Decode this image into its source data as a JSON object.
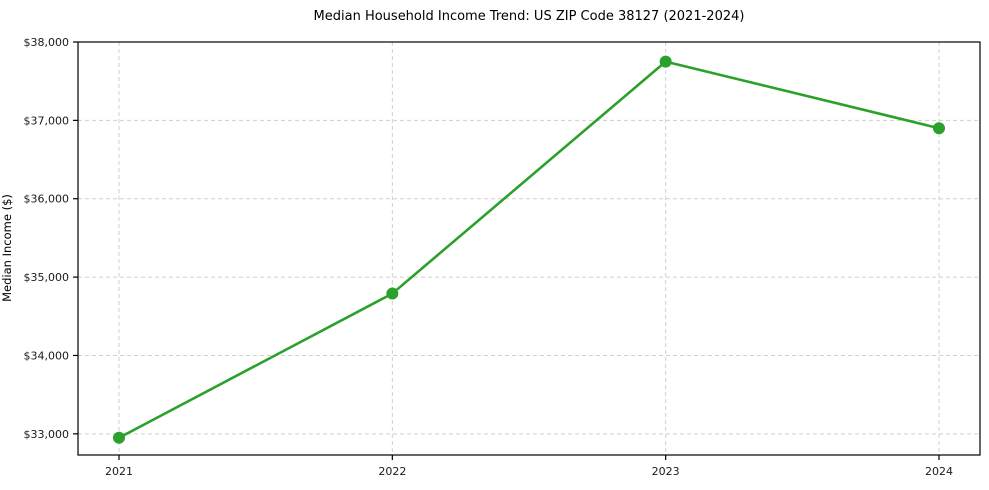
{
  "title": "Median Household Income Trend: US ZIP Code 38127 (2021-2024)",
  "y_axis_label": "Median Income ($)",
  "chart_data": {
    "type": "line",
    "title": "Median Household Income Trend: US ZIP Code 38127 (2021-2024)",
    "xlabel": "",
    "ylabel": "Median Income ($)",
    "x": [
      2021,
      2022,
      2023,
      2024
    ],
    "xtick_labels": [
      "2021",
      "2022",
      "2023",
      "2024"
    ],
    "series": [
      {
        "name": "Median Household Income",
        "values": [
          32950,
          34790,
          37750,
          36900
        ]
      }
    ],
    "yticks": [
      33000,
      34000,
      35000,
      36000,
      37000,
      38000
    ],
    "ytick_labels": [
      "$33,000",
      "$34,000",
      "$35,000",
      "$36,000",
      "$37,000",
      "$38,000"
    ],
    "ylim": [
      32730,
      38000
    ],
    "xlim": [
      2020.85,
      2024.15
    ],
    "grid": true,
    "legend": "none",
    "colors": {
      "line": "#2ca02c",
      "marker": "#2ca02c",
      "grid": "#cfcfcf",
      "spine": "#000000",
      "tick_text": "#1a1a1a",
      "background": "#ffffff"
    },
    "line_width": 2.6,
    "marker_radius": 6
  }
}
